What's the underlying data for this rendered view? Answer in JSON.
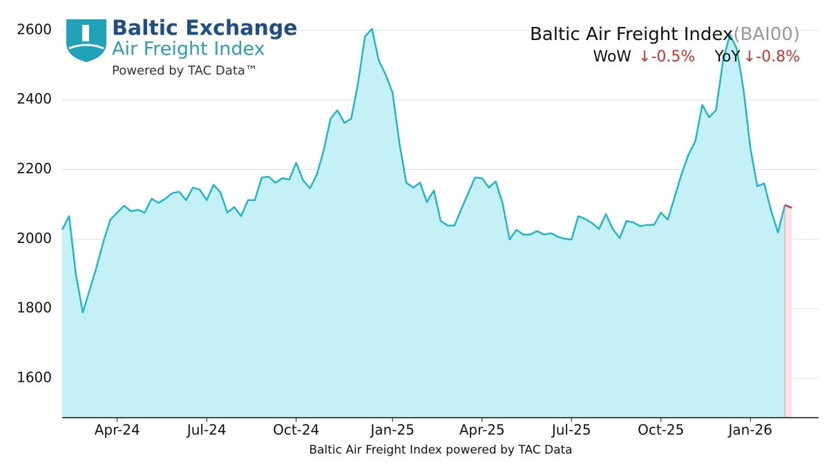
{
  "chart_data": {
    "type": "line",
    "title": "Baltic Air Freight Index",
    "title_code": "(BAI00)",
    "wow_label": "WoW",
    "wow_value": "↓-0.5%",
    "yoy_label": "YoY",
    "yoy_value": "↓-0.8%",
    "x_label": "Baltic Air Freight Index powered by TAC Data",
    "logo": {
      "line1": "Baltic Exchange",
      "line2": "Air Freight Index",
      "line3": "Powered by TAC Data™"
    },
    "categories": [
      null,
      null,
      null,
      null,
      null,
      null,
      null,
      null,
      "Apr-24",
      null,
      null,
      null,
      null,
      null,
      null,
      null,
      null,
      null,
      null,
      null,
      null,
      "Jul-24",
      null,
      null,
      null,
      null,
      null,
      null,
      null,
      null,
      null,
      null,
      null,
      null,
      "Oct-24",
      null,
      null,
      null,
      null,
      null,
      null,
      null,
      null,
      null,
      null,
      null,
      null,
      null,
      "Jan-25",
      null,
      null,
      null,
      null,
      null,
      null,
      null,
      null,
      null,
      null,
      null,
      null,
      "Apr-25",
      null,
      null,
      null,
      null,
      null,
      null,
      null,
      null,
      null,
      null,
      null,
      null,
      "Jul-25",
      null,
      null,
      null,
      null,
      null,
      null,
      null,
      null,
      null,
      null,
      null,
      null,
      "Oct-25",
      null,
      null,
      null,
      null,
      null,
      null,
      null,
      null,
      null,
      null,
      null,
      null,
      "Jan-26",
      null,
      null,
      null,
      null,
      null,
      null
    ],
    "series": [
      {
        "name": "Baltic Air Freight Index",
        "color": "#19b8cc",
        "fill": "#c2eff6",
        "decline_color": "#d9302c",
        "decline_fill": "#fbe1e3",
        "values": [
          2027,
          2066,
          1898,
          1789,
          1854,
          1920,
          1993,
          2056,
          2076,
          2096,
          2080,
          2084,
          2076,
          2116,
          2104,
          2116,
          2132,
          2136,
          2112,
          2148,
          2142,
          2112,
          2156,
          2134,
          2076,
          2092,
          2066,
          2112,
          2112,
          2177,
          2179,
          2162,
          2175,
          2171,
          2219,
          2169,
          2146,
          2185,
          2255,
          2346,
          2370,
          2334,
          2346,
          2449,
          2582,
          2604,
          2513,
          2473,
          2421,
          2275,
          2162,
          2148,
          2162,
          2106,
          2140,
          2052,
          2039,
          2039,
          2086,
          2132,
          2177,
          2175,
          2148,
          2166,
          2102,
          1999,
          2027,
          2013,
          2013,
          2023,
          2013,
          2017,
          2007,
          2001,
          1999,
          2066,
          2058,
          2046,
          2029,
          2072,
          2029,
          2003,
          2052,
          2048,
          2037,
          2041,
          2041,
          2076,
          2056,
          2122,
          2187,
          2243,
          2281,
          2386,
          2350,
          2370,
          2509,
          2588,
          2548,
          2429,
          2261,
          2152,
          2160,
          2082,
          2019,
          2098,
          2090
        ]
      }
    ],
    "ylim": [
      1487,
      2687
    ],
    "yticks": [
      1600,
      1800,
      2000,
      2200,
      2400,
      2600
    ],
    "grid": true
  }
}
